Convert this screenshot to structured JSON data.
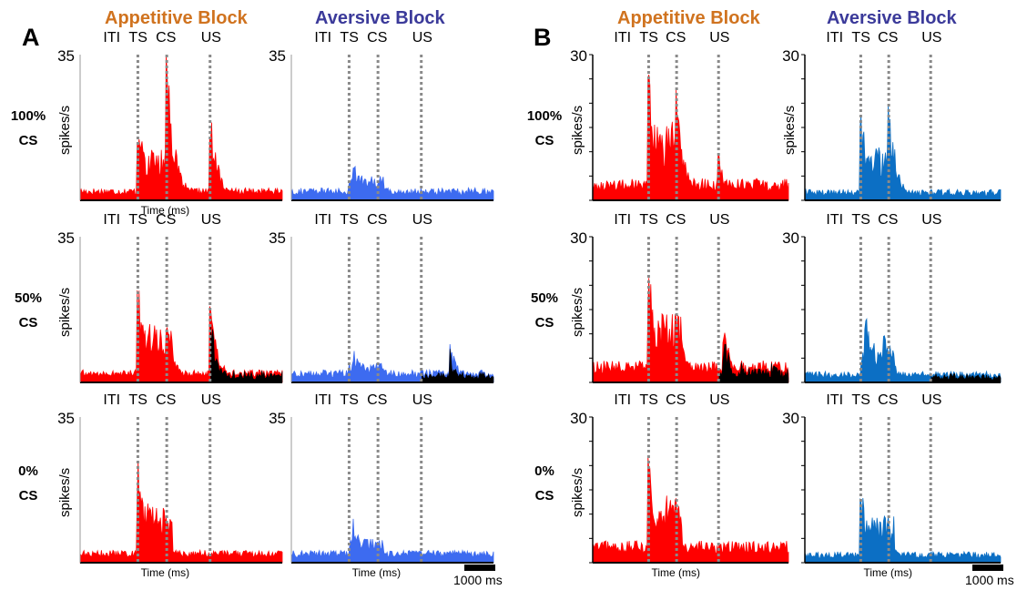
{
  "panels": [
    {
      "letter": "A",
      "ymax_label": "35",
      "time_label": "Time (ms)",
      "scale_label": "1000 ms"
    },
    {
      "letter": "B",
      "ymax_label": "30",
      "time_label": "Time (ms)",
      "scale_label": "1000 ms"
    }
  ],
  "blocks": [
    "Appetitive Block",
    "Aversive Block"
  ],
  "events": [
    "ITI",
    "TS",
    "CS",
    "US"
  ],
  "rows": [
    {
      "label_line1": "100%",
      "label_line2": "CS",
      "ylabel": "spikes/s"
    },
    {
      "label_line1": "50%",
      "label_line2": "CS",
      "ylabel": "spikes/s"
    },
    {
      "label_line1": "0%",
      "label_line2": "CS",
      "ylabel": "spikes/s"
    }
  ],
  "colors": {
    "appetitive_title": "#d0731f",
    "aversive_title": "#3b3a9a",
    "appetitive_trace": "#ff0000",
    "aversive_trace_A": "#3d6bf0",
    "aversive_trace_B": "#0c6fc4",
    "omitted_trace": "#000000",
    "event_line": "#8a8a8a"
  },
  "chart_data": [
    {
      "type": "area",
      "panel": "A",
      "block": "Appetitive Block",
      "row": "100% CS",
      "ylim": [
        0,
        35
      ],
      "ylabel": "spikes/s",
      "xlabel": "Time (ms)",
      "events": {
        "TS": 600,
        "CS": 900,
        "US": 1350
      },
      "x_range": [
        0,
        2100
      ],
      "peaks": [
        [
          600,
          21
        ],
        [
          900,
          34
        ],
        [
          1350,
          22
        ]
      ],
      "baseline": 2,
      "series": [
        {
          "name": "rewarded",
          "color": "#ff0000"
        }
      ]
    },
    {
      "type": "area",
      "panel": "A",
      "block": "Aversive Block",
      "row": "100% CS",
      "ylim": [
        0,
        35
      ],
      "ylabel": "",
      "xlabel": "",
      "events": {
        "TS": 600,
        "CS": 900,
        "US": 1350
      },
      "x_range": [
        0,
        2100
      ],
      "peaks": [
        [
          650,
          10
        ],
        [
          930,
          7
        ]
      ],
      "baseline": 2,
      "series": [
        {
          "name": "trace",
          "color": "#3d6bf0"
        }
      ]
    },
    {
      "type": "area",
      "panel": "A",
      "block": "Appetitive Block",
      "row": "50% CS",
      "ylim": [
        0,
        35
      ],
      "ylabel": "spikes/s",
      "xlabel": "",
      "events": {
        "TS": 600,
        "CS": 900,
        "US": 1350
      },
      "x_range": [
        0,
        2100
      ],
      "peaks": [
        [
          600,
          24
        ],
        [
          900,
          14
        ],
        [
          1350,
          19
        ]
      ],
      "baseline": 2,
      "series": [
        {
          "name": "rewarded",
          "color": "#ff0000"
        },
        {
          "name": "omitted",
          "color": "#000000"
        }
      ]
    },
    {
      "type": "area",
      "panel": "A",
      "block": "Aversive Block",
      "row": "50% CS",
      "ylim": [
        0,
        35
      ],
      "ylabel": "",
      "xlabel": "",
      "events": {
        "TS": 600,
        "CS": 900,
        "US": 1350
      },
      "x_range": [
        0,
        2100
      ],
      "peaks": [
        [
          650,
          8
        ],
        [
          900,
          6
        ],
        [
          1650,
          9
        ]
      ],
      "baseline": 2,
      "series": [
        {
          "name": "trace",
          "color": "#3d6bf0"
        },
        {
          "name": "omitted",
          "color": "#000000"
        }
      ]
    },
    {
      "type": "area",
      "panel": "A",
      "block": "Appetitive Block",
      "row": "0% CS",
      "ylim": [
        0,
        35
      ],
      "ylabel": "spikes/s",
      "xlabel": "Time (ms)",
      "events": {
        "TS": 600,
        "CS": 900,
        "US": 1350
      },
      "x_range": [
        0,
        2100
      ],
      "peaks": [
        [
          600,
          24
        ],
        [
          900,
          7
        ]
      ],
      "baseline": 2,
      "series": [
        {
          "name": "trace",
          "color": "#ff0000"
        }
      ]
    },
    {
      "type": "area",
      "panel": "A",
      "block": "Aversive Block",
      "row": "0% CS",
      "ylim": [
        0,
        35
      ],
      "ylabel": "",
      "xlabel": "Time (ms)",
      "events": {
        "TS": 600,
        "CS": 900,
        "US": 1350
      },
      "x_range": [
        0,
        2100
      ],
      "peaks": [
        [
          650,
          10
        ],
        [
          900,
          5
        ]
      ],
      "baseline": 2,
      "series": [
        {
          "name": "trace",
          "color": "#3d6bf0"
        }
      ]
    },
    {
      "type": "area",
      "panel": "B",
      "block": "Appetitive Block",
      "row": "100% CS",
      "ylim": [
        0,
        30
      ],
      "ylabel": "spikes/s",
      "xlabel": "",
      "events": {
        "TS": 600,
        "CS": 900,
        "US": 1350
      },
      "x_range": [
        0,
        2100
      ],
      "peaks": [
        [
          600,
          27
        ],
        [
          900,
          21
        ],
        [
          1350,
          10
        ]
      ],
      "baseline": 3,
      "series": [
        {
          "name": "trace",
          "color": "#ff0000"
        }
      ]
    },
    {
      "type": "area",
      "panel": "B",
      "block": "Aversive Block",
      "row": "100% CS",
      "ylim": [
        0,
        30
      ],
      "ylabel": "spikes/s",
      "xlabel": "",
      "events": {
        "TS": 600,
        "CS": 900,
        "US": 1350
      },
      "x_range": [
        0,
        2100
      ],
      "peaks": [
        [
          600,
          19
        ],
        [
          900,
          20
        ]
      ],
      "baseline": 1.5,
      "series": [
        {
          "name": "trace",
          "color": "#0c6fc4"
        }
      ]
    },
    {
      "type": "area",
      "panel": "B",
      "block": "Appetitive Block",
      "row": "50% CS",
      "ylim": [
        0,
        30
      ],
      "ylabel": "spikes/s",
      "xlabel": "",
      "events": {
        "TS": 600,
        "CS": 900,
        "US": 1350
      },
      "x_range": [
        0,
        2100
      ],
      "peaks": [
        [
          600,
          24
        ],
        [
          900,
          15
        ],
        [
          1400,
          13
        ]
      ],
      "baseline": 3,
      "series": [
        {
          "name": "rewarded",
          "color": "#ff0000"
        },
        {
          "name": "omitted",
          "color": "#000000"
        }
      ]
    },
    {
      "type": "area",
      "panel": "B",
      "block": "Aversive Block",
      "row": "50% CS",
      "ylim": [
        0,
        30
      ],
      "ylabel": "",
      "xlabel": "",
      "events": {
        "TS": 600,
        "CS": 900,
        "US": 1350
      },
      "x_range": [
        0,
        2100
      ],
      "peaks": [
        [
          650,
          14
        ],
        [
          850,
          13
        ]
      ],
      "baseline": 1.5,
      "series": [
        {
          "name": "trace",
          "color": "#0c6fc4"
        },
        {
          "name": "omitted",
          "color": "#000000"
        }
      ]
    },
    {
      "type": "area",
      "panel": "B",
      "block": "Appetitive Block",
      "row": "0% CS",
      "ylim": [
        0,
        30
      ],
      "ylabel": "spikes/s",
      "xlabel": "Time (ms)",
      "events": {
        "TS": 600,
        "CS": 900,
        "US": 1350
      },
      "x_range": [
        0,
        2100
      ],
      "peaks": [
        [
          600,
          23
        ],
        [
          850,
          13
        ]
      ],
      "baseline": 3,
      "series": [
        {
          "name": "trace",
          "color": "#ff0000"
        }
      ]
    },
    {
      "type": "area",
      "panel": "B",
      "block": "Aversive Block",
      "row": "0% CS",
      "ylim": [
        0,
        30
      ],
      "ylabel": "",
      "xlabel": "Time (ms)",
      "events": {
        "TS": 600,
        "CS": 900,
        "US": 1350
      },
      "x_range": [
        0,
        2100
      ],
      "peaks": [
        [
          600,
          16
        ],
        [
          850,
          11
        ]
      ],
      "baseline": 1.5,
      "series": [
        {
          "name": "trace",
          "color": "#0c6fc4"
        }
      ]
    }
  ]
}
